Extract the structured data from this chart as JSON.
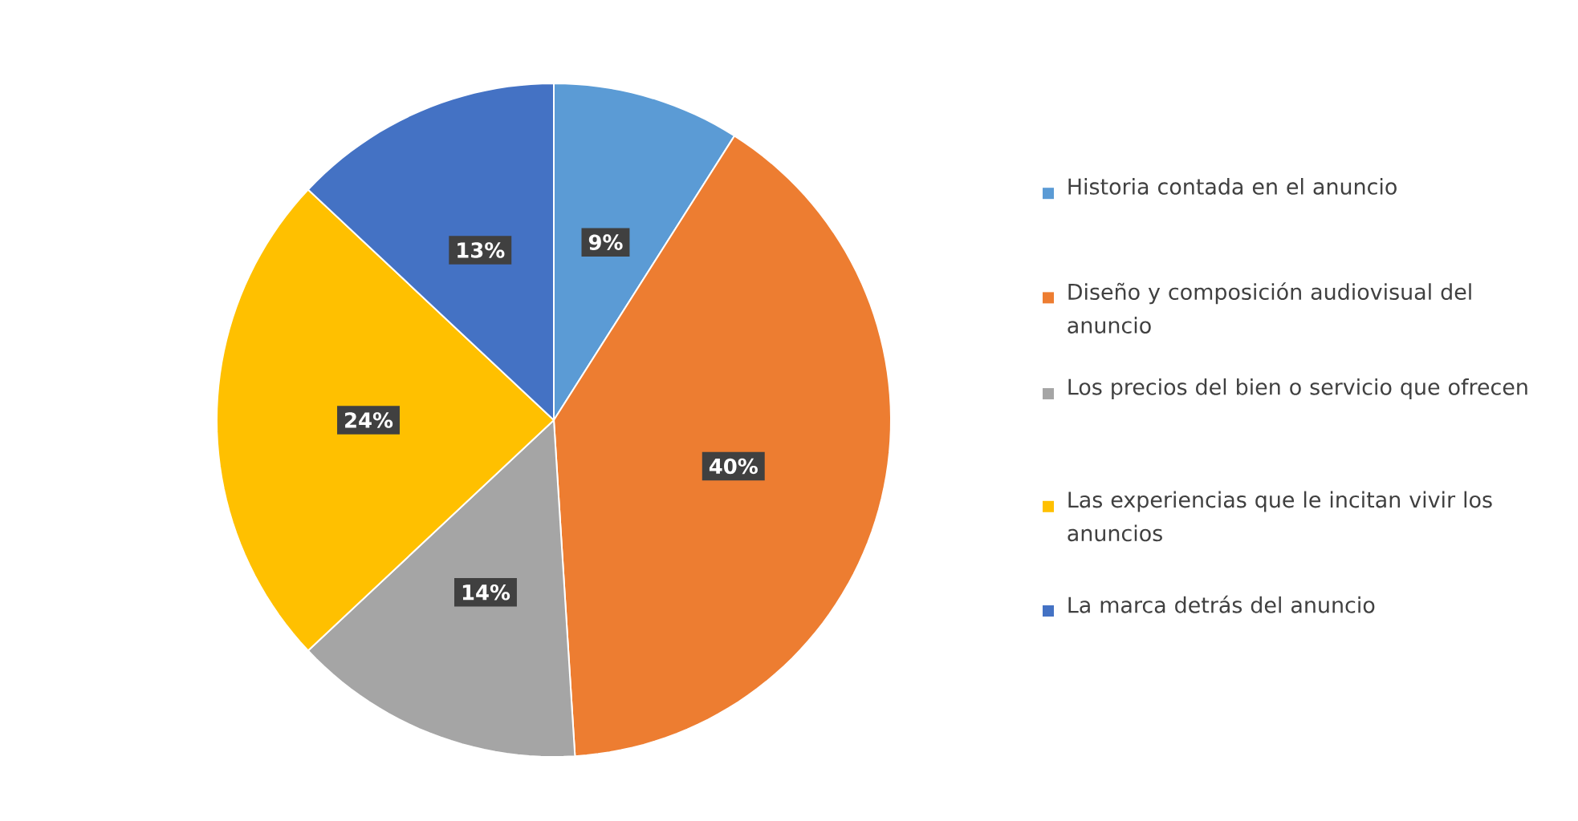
{
  "chart_data": {
    "type": "pie",
    "categories": [
      "Historia contada en el anuncio",
      "Diseño y composición audiovisual del anuncio",
      "Los precios del bien o servicio que ofrecen",
      "Las experiencias que le incitan vivir los anuncios",
      "La marca detrás del anuncio"
    ],
    "values": [
      9,
      40,
      14,
      24,
      13
    ],
    "value_labels": [
      "9%",
      "40%",
      "14%",
      "24%",
      "13%"
    ],
    "colors": [
      "#5b9bd5",
      "#ed7d31",
      "#a5a5a5",
      "#ffc000",
      "#4472c4"
    ],
    "legend": "right"
  }
}
